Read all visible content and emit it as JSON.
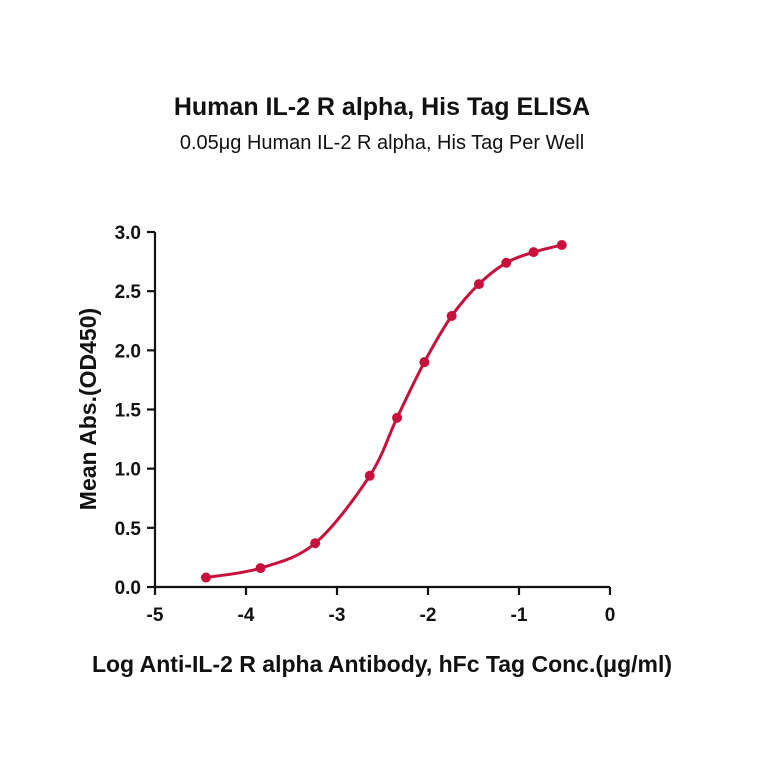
{
  "chart_data": {
    "type": "line",
    "title": "Human IL-2 R alpha, His Tag ELISA",
    "subtitle": "0.05μg Human IL-2 R alpha, His Tag Per Well",
    "xlabel": "Log Anti-IL-2 R alpha Antibody, hFc Tag Conc.(μg/ml)",
    "ylabel": "Mean Abs.(OD450)",
    "xlim": [
      -5,
      0
    ],
    "ylim": [
      0,
      3.0
    ],
    "xticks": [
      -5,
      -4,
      -3,
      -2,
      -1,
      0
    ],
    "xtick_labels": [
      "-5",
      "-4",
      "-3",
      "-2",
      "-1",
      "0"
    ],
    "yticks": [
      0,
      0.5,
      1.0,
      1.5,
      2.0,
      2.5,
      3.0
    ],
    "ytick_labels": [
      "0.0",
      "0.5",
      "1.0",
      "1.5",
      "2.0",
      "2.5",
      "3.0"
    ],
    "grid": false,
    "color": "#C8103C",
    "series": [
      {
        "x": [
          -4.44,
          -3.84,
          -3.24,
          -2.64,
          -2.34,
          -2.04,
          -1.74,
          -1.44,
          -1.14,
          -0.84,
          -0.53
        ],
        "y": [
          0.08,
          0.16,
          0.37,
          0.94,
          1.43,
          1.9,
          2.29,
          2.56,
          2.74,
          2.83,
          2.89
        ]
      }
    ]
  }
}
